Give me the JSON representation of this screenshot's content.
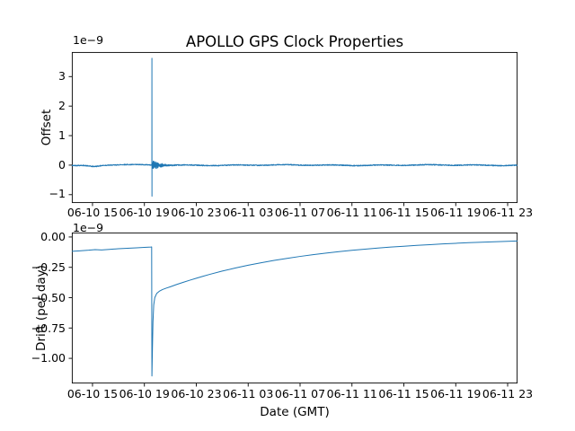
{
  "title": "APOLLO GPS Clock Properties",
  "line_color": "#1f77b4",
  "axis_color": "#000000",
  "chart_data": [
    {
      "type": "line",
      "panel": "top",
      "ylabel": "Offset",
      "y_scale_label": "1e−9",
      "ylim": [
        -1.28,
        3.83
      ],
      "yticks": [
        {
          "v": 3,
          "label": "3"
        },
        {
          "v": 2,
          "label": "2"
        },
        {
          "v": 1,
          "label": "1"
        },
        {
          "v": 0,
          "label": "0"
        },
        {
          "v": -1,
          "label": "−1"
        }
      ],
      "xlim_hours": [
        13.41,
        47.76
      ],
      "xticks": [
        {
          "t": 15,
          "label": "06-10 15"
        },
        {
          "t": 19,
          "label": "06-10 19"
        },
        {
          "t": 23,
          "label": "06-10 23"
        },
        {
          "t": 27,
          "label": "06-11 03"
        },
        {
          "t": 31,
          "label": "06-11 07"
        },
        {
          "t": 35,
          "label": "06-11 11"
        },
        {
          "t": 39,
          "label": "06-11 15"
        },
        {
          "t": 43,
          "label": "06-11 19"
        },
        {
          "t": 47,
          "label": "06-11 23"
        }
      ],
      "grid": false,
      "series": [
        {
          "name": "offset",
          "units_scale": "1e-9",
          "baseline": 0.0,
          "noise_amplitude": 0.016,
          "wander": [
            {
              "t": 15.1,
              "depth": -0.052,
              "sigma": 0.45
            },
            {
              "t": 17.3,
              "depth": 0.018,
              "sigma": 0.5
            }
          ],
          "spike": {
            "t": 19.58,
            "peak": 3.62,
            "trough": -1.05
          },
          "ringing": {
            "initial_amplitude": 0.23,
            "decay_hours": 0.5,
            "duration_hours": 3
          }
        }
      ]
    },
    {
      "type": "line",
      "panel": "bottom",
      "ylabel": "Drift (per day)",
      "xlabel": "Date (GMT)",
      "y_scale_label": "1e−9",
      "ylim": [
        -1.2065,
        0.0365
      ],
      "yticks": [
        {
          "v": 0,
          "label": "0.00"
        },
        {
          "v": -0.25,
          "label": "−0.25"
        },
        {
          "v": -0.5,
          "label": "−0.50"
        },
        {
          "v": -0.75,
          "label": "−0.75"
        },
        {
          "v": -1,
          "label": "−1.00"
        }
      ],
      "xlim_hours": [
        13.41,
        47.76
      ],
      "xticks": [
        {
          "t": 15,
          "label": "06-10 15"
        },
        {
          "t": 19,
          "label": "06-10 19"
        },
        {
          "t": 23,
          "label": "06-10 23"
        },
        {
          "t": 27,
          "label": "06-11 03"
        },
        {
          "t": 31,
          "label": "06-11 07"
        },
        {
          "t": 35,
          "label": "06-11 11"
        },
        {
          "t": 39,
          "label": "06-11 15"
        },
        {
          "t": 43,
          "label": "06-11 19"
        },
        {
          "t": 47,
          "label": "06-11 23"
        }
      ],
      "grid": false,
      "series": [
        {
          "name": "drift",
          "units_scale": "1e-9",
          "points": [
            [
              13.41,
              -0.118
            ],
            [
              14.0,
              -0.114
            ],
            [
              14.7,
              -0.109
            ],
            [
              15.2,
              -0.104
            ],
            [
              15.7,
              -0.107
            ],
            [
              16.3,
              -0.102
            ],
            [
              17.0,
              -0.097
            ],
            [
              17.7,
              -0.093
            ],
            [
              18.4,
              -0.089
            ],
            [
              19.0,
              -0.086
            ],
            [
              19.5,
              -0.083
            ],
            [
              19.56,
              -0.082
            ],
            [
              19.58,
              -1.145
            ],
            [
              19.62,
              -0.92
            ],
            [
              19.66,
              -0.7
            ],
            [
              19.72,
              -0.56
            ],
            [
              19.8,
              -0.5
            ],
            [
              19.95,
              -0.465
            ],
            [
              20.15,
              -0.447
            ],
            [
              20.4,
              -0.433
            ],
            [
              20.7,
              -0.421
            ],
            [
              21.0,
              -0.41
            ],
            [
              21.5,
              -0.391
            ],
            [
              22.0,
              -0.373
            ],
            [
              22.5,
              -0.356
            ],
            [
              23.0,
              -0.34
            ],
            [
              23.5,
              -0.324
            ],
            [
              24.0,
              -0.309
            ],
            [
              25.0,
              -0.281
            ],
            [
              26.0,
              -0.256
            ],
            [
              27.0,
              -0.233
            ],
            [
              28.0,
              -0.212
            ],
            [
              29.0,
              -0.193
            ],
            [
              30.0,
              -0.176
            ],
            [
              31.0,
              -0.16
            ],
            [
              32.0,
              -0.146
            ],
            [
              33.0,
              -0.133
            ],
            [
              34.0,
              -0.121
            ],
            [
              35.0,
              -0.11
            ],
            [
              36.0,
              -0.1
            ],
            [
              37.0,
              -0.091
            ],
            [
              38.0,
              -0.083
            ],
            [
              39.0,
              -0.076
            ],
            [
              40.0,
              -0.069
            ],
            [
              41.0,
              -0.063
            ],
            [
              42.0,
              -0.057
            ],
            [
              43.0,
              -0.052
            ],
            [
              44.0,
              -0.047
            ],
            [
              45.0,
              -0.043
            ],
            [
              46.0,
              -0.039
            ],
            [
              47.0,
              -0.036
            ],
            [
              47.76,
              -0.033
            ]
          ]
        }
      ]
    }
  ]
}
